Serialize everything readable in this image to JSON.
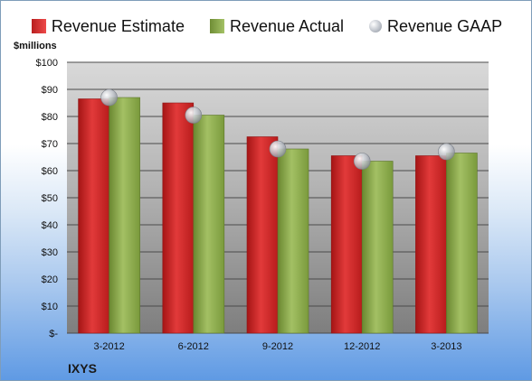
{
  "chart_data": {
    "type": "bar",
    "unit_label": "$millions",
    "company": "IXYS",
    "categories": [
      "3-2012",
      "6-2012",
      "9-2012",
      "12-2012",
      "3-2013"
    ],
    "series": [
      {
        "name": "Revenue Estimate",
        "type": "bar",
        "color": "#d32b2b",
        "values": [
          86.5,
          85,
          72.5,
          65.5,
          65.5
        ]
      },
      {
        "name": "Revenue Actual",
        "type": "bar",
        "color": "#8db14c",
        "values": [
          87,
          80.5,
          68,
          63.5,
          66.5
        ]
      },
      {
        "name": "Revenue GAAP",
        "type": "marker",
        "color": "#c0c4cc",
        "values": [
          87,
          80.5,
          68,
          63.5,
          67
        ]
      }
    ],
    "ylim": [
      0,
      100
    ],
    "yticks": [
      0,
      10,
      20,
      30,
      40,
      50,
      60,
      70,
      80,
      90,
      100
    ],
    "ytick_labels": [
      "$-",
      "$10",
      "$20",
      "$30",
      "$40",
      "$50",
      "$60",
      "$70",
      "$80",
      "$90",
      "$100"
    ],
    "grid": true,
    "legend_position": "top"
  }
}
